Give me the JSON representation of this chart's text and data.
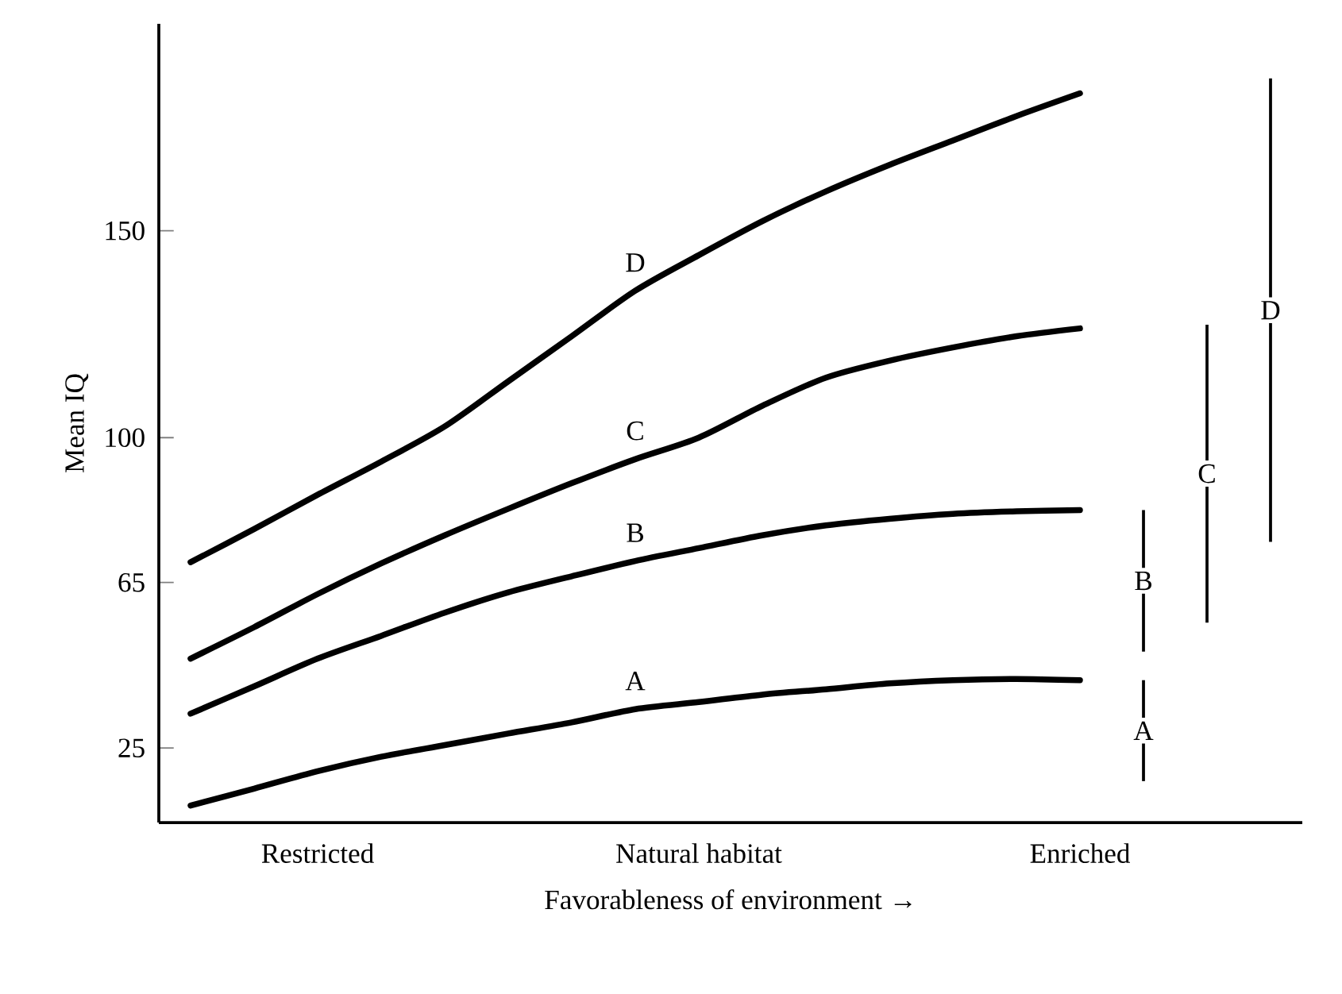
{
  "chart_data": {
    "type": "line",
    "xlabel": "Favorableness of environment →",
    "ylabel": "Mean IQ",
    "categories": [
      null,
      null,
      "Restricted",
      null,
      null,
      null,
      null,
      null,
      "Natural habitat",
      null,
      null,
      null,
      null,
      null,
      "Enriched",
      null,
      null,
      null
    ],
    "ylim": [
      7,
      200
    ],
    "yticks": [
      25,
      65,
      100,
      150
    ],
    "grid": false,
    "legend": false,
    "marker": "none",
    "line_style": "solid",
    "series": [
      {
        "name": "D",
        "color": "#000000",
        "values": [
          69.9,
          77.9,
          86.2,
          94.2,
          102.7,
          113.6,
          124.5,
          135.5,
          144.1,
          152.3,
          159.5,
          165.9,
          171.8,
          177.7,
          183.2,
          null,
          null,
          null
        ]
      },
      {
        "name": "C",
        "color": "#000000",
        "values": [
          46.6,
          54.2,
          62.2,
          69.6,
          76.4,
          82.8,
          89.0,
          94.8,
          100,
          107.7,
          114.5,
          118.6,
          121.8,
          124.5,
          126.4,
          null,
          null,
          null
        ]
      },
      {
        "name": "B",
        "color": "#000000",
        "values": [
          33.3,
          39.9,
          46.6,
          52.1,
          57.7,
          62.6,
          66.5,
          70.2,
          73.3,
          76.4,
          78.8,
          80.4,
          81.6,
          82.2,
          82.5,
          null,
          null,
          null
        ]
      },
      {
        "name": "A",
        "color": "#000000",
        "values": [
          11.1,
          15.2,
          19.4,
          22.9,
          25.7,
          28.5,
          31.2,
          34.4,
          36.1,
          37.9,
          39.2,
          40.6,
          41.4,
          41.7,
          41.4,
          null,
          null,
          null
        ]
      },
      {
        "name": "A",
        "type": "bar",
        "color": "#000000",
        "values": [
          null,
          null,
          null,
          null,
          null,
          null,
          null,
          null,
          null,
          null,
          null,
          null,
          null,
          null,
          null,
          24.4,
          null,
          null
        ],
        "base": [
          null,
          null,
          null,
          null,
          null,
          null,
          null,
          null,
          null,
          null,
          null,
          null,
          null,
          null,
          null,
          17,
          null,
          null
        ]
      },
      {
        "name": "B",
        "type": "bar",
        "color": "#000000",
        "values": [
          null,
          null,
          null,
          null,
          null,
          null,
          null,
          null,
          null,
          null,
          null,
          null,
          null,
          null,
          null,
          34.2,
          null,
          null
        ],
        "base": [
          null,
          null,
          null,
          null,
          null,
          null,
          null,
          null,
          null,
          null,
          null,
          null,
          null,
          null,
          null,
          48.3,
          null,
          null
        ]
      },
      {
        "name": "C",
        "type": "bar",
        "color": "#000000",
        "values": [
          null,
          null,
          null,
          null,
          null,
          null,
          null,
          null,
          null,
          null,
          null,
          null,
          null,
          null,
          null,
          null,
          72.0,
          null
        ],
        "base": [
          null,
          null,
          null,
          null,
          null,
          null,
          null,
          null,
          null,
          null,
          null,
          null,
          null,
          null,
          null,
          null,
          55.3,
          null
        ]
      },
      {
        "name": "D",
        "type": "bar",
        "color": "#000000",
        "values": [
          null,
          null,
          null,
          null,
          null,
          null,
          null,
          null,
          null,
          null,
          null,
          null,
          null,
          null,
          null,
          null,
          null,
          112.0
        ],
        "base": [
          null,
          null,
          null,
          null,
          null,
          null,
          null,
          null,
          null,
          null,
          null,
          null,
          null,
          null,
          null,
          null,
          null,
          74.8
        ]
      }
    ]
  }
}
